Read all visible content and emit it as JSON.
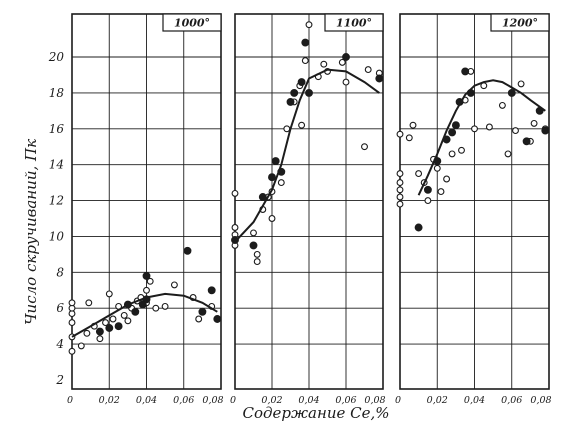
{
  "chart_data": [
    {
      "type": "scatter",
      "title": "1000°",
      "xlabel": "Содержание Се,%",
      "ylabel": "Число скручиваний, Пк",
      "xlim": [
        0,
        0.08
      ],
      "ylim": [
        2,
        22
      ],
      "xticks": [
        "0",
        "0,02",
        "0,04",
        "0,06",
        "0,08"
      ],
      "grid": true,
      "series": [
        {
          "marker": "open",
          "points": [
            [
              0.0,
              3.6
            ],
            [
              0.0,
              4.4
            ],
            [
              0.0,
              5.2
            ],
            [
              0.0,
              5.7
            ],
            [
              0.0,
              6.0
            ],
            [
              0.0,
              6.3
            ],
            [
              0.005,
              3.9
            ],
            [
              0.008,
              4.6
            ],
            [
              0.009,
              6.3
            ],
            [
              0.012,
              5.0
            ],
            [
              0.015,
              4.3
            ],
            [
              0.018,
              5.2
            ],
            [
              0.02,
              6.8
            ],
            [
              0.022,
              5.4
            ],
            [
              0.025,
              6.1
            ],
            [
              0.028,
              5.6
            ],
            [
              0.03,
              5.3
            ],
            [
              0.032,
              6.0
            ],
            [
              0.035,
              6.4
            ],
            [
              0.037,
              6.6
            ],
            [
              0.04,
              6.3
            ],
            [
              0.04,
              7.0
            ],
            [
              0.042,
              7.5
            ],
            [
              0.045,
              6.0
            ],
            [
              0.05,
              6.1
            ],
            [
              0.055,
              7.3
            ],
            [
              0.065,
              6.6
            ],
            [
              0.068,
              5.4
            ],
            [
              0.075,
              6.1
            ]
          ]
        },
        {
          "marker": "filled",
          "points": [
            [
              0.015,
              4.7
            ],
            [
              0.02,
              4.9
            ],
            [
              0.025,
              5.0
            ],
            [
              0.03,
              6.2
            ],
            [
              0.034,
              5.8
            ],
            [
              0.038,
              6.2
            ],
            [
              0.04,
              7.8
            ],
            [
              0.04,
              6.5
            ],
            [
              0.062,
              9.2
            ],
            [
              0.07,
              5.8
            ],
            [
              0.075,
              7.0
            ],
            [
              0.078,
              5.4
            ]
          ]
        },
        {
          "marker": "curve",
          "points": [
            [
              0.0,
              4.4
            ],
            [
              0.01,
              5.0
            ],
            [
              0.02,
              5.6
            ],
            [
              0.03,
              6.2
            ],
            [
              0.04,
              6.6
            ],
            [
              0.05,
              6.8
            ],
            [
              0.06,
              6.7
            ],
            [
              0.07,
              6.3
            ],
            [
              0.078,
              5.8
            ]
          ]
        }
      ]
    },
    {
      "type": "scatter",
      "title": "1100°",
      "xlim": [
        0,
        0.08
      ],
      "ylim": [
        2,
        22
      ],
      "xticks": [
        "0",
        "0,02",
        "0,04",
        "0,06",
        "0,08"
      ],
      "grid": true,
      "series": [
        {
          "marker": "open",
          "points": [
            [
              0.0,
              9.5
            ],
            [
              0.0,
              10.1
            ],
            [
              0.0,
              10.5
            ],
            [
              0.0,
              12.4
            ],
            [
              0.01,
              10.2
            ],
            [
              0.012,
              9.0
            ],
            [
              0.012,
              8.6
            ],
            [
              0.015,
              11.5
            ],
            [
              0.018,
              12.2
            ],
            [
              0.02,
              11.0
            ],
            [
              0.02,
              12.5
            ],
            [
              0.025,
              13.0
            ],
            [
              0.028,
              16.0
            ],
            [
              0.032,
              17.5
            ],
            [
              0.035,
              18.4
            ],
            [
              0.036,
              16.2
            ],
            [
              0.038,
              19.8
            ],
            [
              0.04,
              21.8
            ],
            [
              0.045,
              18.9
            ],
            [
              0.048,
              19.6
            ],
            [
              0.05,
              19.2
            ],
            [
              0.058,
              19.7
            ],
            [
              0.06,
              18.6
            ],
            [
              0.07,
              15.0
            ],
            [
              0.072,
              19.3
            ],
            [
              0.078,
              19.1
            ]
          ]
        },
        {
          "marker": "filled",
          "points": [
            [
              0.0,
              9.8
            ],
            [
              0.01,
              9.5
            ],
            [
              0.015,
              12.2
            ],
            [
              0.02,
              13.3
            ],
            [
              0.022,
              14.2
            ],
            [
              0.025,
              13.6
            ],
            [
              0.03,
              17.5
            ],
            [
              0.032,
              18.0
            ],
            [
              0.036,
              18.6
            ],
            [
              0.038,
              20.8
            ],
            [
              0.04,
              18.0
            ],
            [
              0.06,
              20.0
            ],
            [
              0.078,
              18.8
            ]
          ]
        },
        {
          "marker": "curve",
          "points": [
            [
              0.0,
              9.7
            ],
            [
              0.01,
              10.8
            ],
            [
              0.02,
              12.6
            ],
            [
              0.025,
              14.0
            ],
            [
              0.03,
              16.0
            ],
            [
              0.035,
              17.6
            ],
            [
              0.04,
              18.8
            ],
            [
              0.05,
              19.3
            ],
            [
              0.06,
              19.2
            ],
            [
              0.07,
              18.6
            ],
            [
              0.078,
              18.0
            ]
          ]
        }
      ]
    },
    {
      "type": "scatter",
      "title": "1200°",
      "xlim": [
        0,
        0.08
      ],
      "ylim": [
        2,
        22
      ],
      "xticks": [
        "0",
        "0,02",
        "0,04",
        "0,06",
        "0,08"
      ],
      "grid": true,
      "series": [
        {
          "marker": "open",
          "points": [
            [
              0.0,
              11.8
            ],
            [
              0.0,
              12.2
            ],
            [
              0.0,
              12.6
            ],
            [
              0.0,
              13.0
            ],
            [
              0.0,
              13.5
            ],
            [
              0.0,
              15.7
            ],
            [
              0.005,
              15.5
            ],
            [
              0.007,
              16.2
            ],
            [
              0.01,
              13.5
            ],
            [
              0.013,
              13.0
            ],
            [
              0.015,
              12.0
            ],
            [
              0.018,
              14.3
            ],
            [
              0.02,
              13.8
            ],
            [
              0.022,
              12.5
            ],
            [
              0.025,
              13.2
            ],
            [
              0.028,
              14.6
            ],
            [
              0.03,
              16.2
            ],
            [
              0.033,
              14.8
            ],
            [
              0.035,
              17.6
            ],
            [
              0.038,
              19.2
            ],
            [
              0.04,
              16.0
            ],
            [
              0.045,
              18.4
            ],
            [
              0.048,
              16.1
            ],
            [
              0.055,
              17.3
            ],
            [
              0.058,
              14.6
            ],
            [
              0.062,
              15.9
            ],
            [
              0.065,
              18.5
            ],
            [
              0.07,
              15.3
            ],
            [
              0.072,
              16.3
            ],
            [
              0.078,
              16.0
            ]
          ]
        },
        {
          "marker": "filled",
          "points": [
            [
              0.01,
              10.5
            ],
            [
              0.015,
              12.6
            ],
            [
              0.02,
              14.2
            ],
            [
              0.025,
              15.4
            ],
            [
              0.028,
              15.8
            ],
            [
              0.03,
              16.2
            ],
            [
              0.032,
              17.5
            ],
            [
              0.035,
              19.2
            ],
            [
              0.038,
              18.0
            ],
            [
              0.06,
              18.0
            ],
            [
              0.068,
              15.3
            ],
            [
              0.075,
              17.0
            ],
            [
              0.078,
              15.9
            ]
          ]
        },
        {
          "marker": "curve",
          "points": [
            [
              0.01,
              12.3
            ],
            [
              0.015,
              13.4
            ],
            [
              0.02,
              14.6
            ],
            [
              0.025,
              15.9
            ],
            [
              0.03,
              17.0
            ],
            [
              0.035,
              17.9
            ],
            [
              0.04,
              18.4
            ],
            [
              0.045,
              18.6
            ],
            [
              0.05,
              18.7
            ],
            [
              0.055,
              18.6
            ],
            [
              0.06,
              18.3
            ],
            [
              0.065,
              18.0
            ],
            [
              0.07,
              17.6
            ],
            [
              0.078,
              17.0
            ]
          ]
        }
      ]
    }
  ],
  "y_axis": {
    "label": "Число скручиваний, Пк",
    "ticks": [
      "2",
      "4",
      "6",
      "8",
      "10",
      "12",
      "14",
      "16",
      "18",
      "20"
    ],
    "tick_values": [
      2,
      4,
      6,
      8,
      10,
      12,
      14,
      16,
      18,
      20
    ]
  },
  "x_axis": {
    "label": "Содержание Се,%",
    "ticks": [
      "0",
      "0,02",
      "0,04",
      "0,06",
      "0,08"
    ],
    "tick_values": [
      0,
      0.02,
      0.04,
      0.06,
      0.08
    ]
  },
  "colors": {
    "ink": "#1c1c1c",
    "background": "#ffffff"
  }
}
